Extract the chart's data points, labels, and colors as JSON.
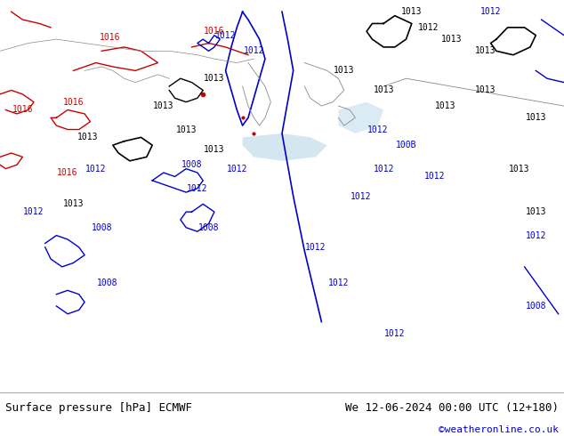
{
  "bg_color": "#c8e6a0",
  "map_area_color": "#c8e6a0",
  "sea_color": "#d0e8f0",
  "border_color": "#888888",
  "fig_width": 6.34,
  "fig_height": 4.9,
  "bottom_label_left": "Surface pressure [hPa] ECMWF",
  "bottom_label_right": "We 12-06-2024 00:00 UTC (12+180)",
  "bottom_label_url": "©weatheronline.co.uk",
  "label_fontsize": 9,
  "url_fontsize": 8,
  "url_color": "#0000cc",
  "text_color": "#000000",
  "bottom_bar_color": "#ffffff",
  "bottom_bar_height": 0.1,
  "isobar_blue_color": "#0000cc",
  "isobar_red_color": "#cc0000",
  "isobar_black_color": "#000000",
  "label_blue": "#0000cc",
  "label_red": "#cc0000",
  "label_black": "#000000"
}
